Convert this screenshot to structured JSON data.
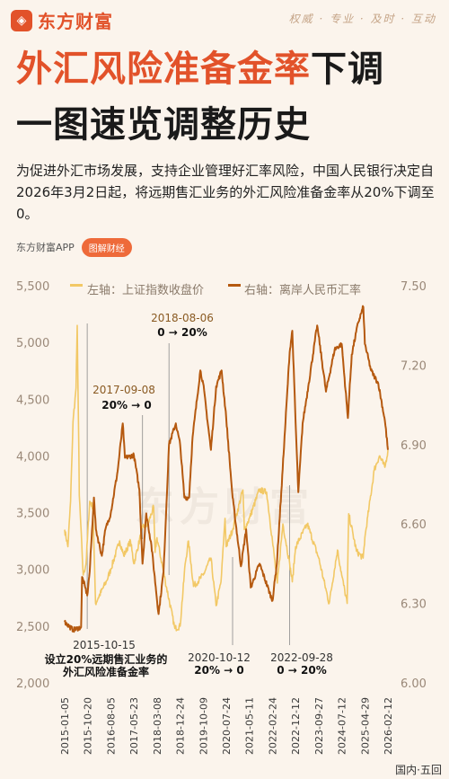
{
  "header": {
    "brand": "东方财富",
    "slogan": "权威 · 专业 · 及时 · 互动"
  },
  "title": {
    "line1_red": "外汇风险准备金率",
    "line1_black": "下调",
    "line2": "一图速览调整历史"
  },
  "intro": "为促进外汇市场发展，支持企业管理好汇率风险，中国人民银行决定自2026年3月2日起，将远期售汇业务的外汇风险准备金率从20%下调至0。",
  "source": {
    "app": "东方财富APP",
    "badge": "图解财经"
  },
  "watermark": "东方财富",
  "footer": "国内·五回",
  "colors": {
    "left_series": "#f2c865",
    "right_series": "#b5590f",
    "axis_text": "#9a8878",
    "title_red": "#e2522a"
  },
  "chart_data": {
    "type": "line",
    "legend": {
      "placement": "top",
      "left": "左轴：上证指数收盘价",
      "right": "右轴：离岸人民币汇率"
    },
    "left_axis": {
      "range": [
        2000,
        5500
      ],
      "ticks": [
        "5,500",
        "5,000",
        "4,500",
        "4,000",
        "3,500",
        "3,000",
        "2,500",
        "2,000"
      ]
    },
    "right_axis": {
      "range": [
        6.0,
        7.5
      ],
      "ticks": [
        "7.50",
        "7.20",
        "6.90",
        "6.60",
        "6.30",
        "6.00"
      ]
    },
    "x_ticks": [
      "2015-01-05",
      "2015-10-20",
      "2016-08-05",
      "2017-05-23",
      "2018-03-08",
      "2018-12-24",
      "2019-10-09",
      "2020-07-24",
      "2021-05-11",
      "2022-02-24",
      "2022-12-12",
      "2023-09-27",
      "2024-07-12",
      "2025-04-29",
      "2026-02-12"
    ],
    "grid": false,
    "series": [
      {
        "name": "左轴：上证指数收盘价",
        "axis": "left",
        "points": [
          [
            "2015-01-05",
            3350
          ],
          [
            "2015-02-15",
            3200
          ],
          [
            "2015-03-20",
            3600
          ],
          [
            "2015-04-20",
            4300
          ],
          [
            "2015-05-28",
            4600
          ],
          [
            "2015-06-12",
            5150
          ],
          [
            "2015-07-08",
            3650
          ],
          [
            "2015-08-26",
            2950
          ],
          [
            "2015-09-30",
            3050
          ],
          [
            "2015-11-15",
            3600
          ],
          [
            "2015-12-25",
            3550
          ],
          [
            "2016-01-28",
            2700
          ],
          [
            "2016-03-01",
            2750
          ],
          [
            "2016-06-15",
            2900
          ],
          [
            "2016-08-05",
            3000
          ],
          [
            "2016-11-25",
            3250
          ],
          [
            "2017-01-15",
            3120
          ],
          [
            "2017-04-10",
            3250
          ],
          [
            "2017-05-23",
            3050
          ],
          [
            "2017-09-08",
            3370
          ],
          [
            "2017-11-15",
            3400
          ],
          [
            "2018-01-26",
            3550
          ],
          [
            "2018-02-12",
            3150
          ],
          [
            "2018-03-08",
            3280
          ],
          [
            "2018-06-20",
            2900
          ],
          [
            "2018-10-18",
            2480
          ],
          [
            "2018-12-24",
            2500
          ],
          [
            "2019-02-25",
            3050
          ],
          [
            "2019-04-08",
            3250
          ],
          [
            "2019-06-10",
            2850
          ],
          [
            "2019-10-09",
            2950
          ],
          [
            "2020-01-14",
            3100
          ],
          [
            "2020-03-19",
            2680
          ],
          [
            "2020-05-20",
            2890
          ],
          [
            "2020-07-09",
            3450
          ],
          [
            "2020-07-24",
            3200
          ],
          [
            "2020-10-12",
            3350
          ],
          [
            "2021-02-18",
            3700
          ],
          [
            "2021-03-09",
            3350
          ],
          [
            "2021-05-11",
            3450
          ],
          [
            "2021-09-13",
            3700
          ],
          [
            "2021-12-13",
            3680
          ],
          [
            "2022-02-24",
            3250
          ],
          [
            "2022-04-26",
            2880
          ],
          [
            "2022-07-05",
            3400
          ],
          [
            "2022-09-28",
            3050
          ],
          [
            "2022-10-31",
            2890
          ],
          [
            "2022-12-12",
            3200
          ],
          [
            "2023-05-08",
            3400
          ],
          [
            "2023-09-27",
            3100
          ],
          [
            "2024-02-05",
            2700
          ],
          [
            "2024-05-20",
            3170
          ],
          [
            "2024-07-12",
            2950
          ],
          [
            "2024-09-18",
            2700
          ],
          [
            "2024-10-08",
            3490
          ],
          [
            "2025-01-13",
            3160
          ],
          [
            "2025-04-07",
            3100
          ],
          [
            "2025-04-29",
            3280
          ],
          [
            "2025-08-25",
            3880
          ],
          [
            "2025-10-28",
            4000
          ],
          [
            "2026-01-05",
            3900
          ],
          [
            "2026-02-12",
            4050
          ]
        ]
      },
      {
        "name": "右轴：离岸人民币汇率",
        "axis": "right",
        "points": [
          [
            "2015-01-05",
            6.23
          ],
          [
            "2015-04-20",
            6.2
          ],
          [
            "2015-07-30",
            6.21
          ],
          [
            "2015-08-12",
            6.4
          ],
          [
            "2015-09-20",
            6.36
          ],
          [
            "2015-10-15",
            6.33
          ],
          [
            "2015-11-15",
            6.42
          ],
          [
            "2016-01-07",
            6.7
          ],
          [
            "2016-02-01",
            6.58
          ],
          [
            "2016-04-15",
            6.48
          ],
          [
            "2016-05-31",
            6.58
          ],
          [
            "2016-08-05",
            6.64
          ],
          [
            "2016-10-31",
            6.8
          ],
          [
            "2017-01-03",
            6.98
          ],
          [
            "2017-01-30",
            6.85
          ],
          [
            "2017-05-23",
            6.86
          ],
          [
            "2017-07-30",
            6.73
          ],
          [
            "2017-09-08",
            6.45
          ],
          [
            "2017-10-25",
            6.64
          ],
          [
            "2017-12-28",
            6.52
          ],
          [
            "2018-03-28",
            6.26
          ],
          [
            "2018-05-30",
            6.42
          ],
          [
            "2018-08-06",
            6.9
          ],
          [
            "2018-10-31",
            6.98
          ],
          [
            "2018-12-24",
            6.9
          ],
          [
            "2019-02-15",
            6.7
          ],
          [
            "2019-04-15",
            6.7
          ],
          [
            "2019-05-30",
            6.93
          ],
          [
            "2019-09-03",
            7.18
          ],
          [
            "2019-10-09",
            7.13
          ],
          [
            "2020-01-14",
            6.88
          ],
          [
            "2020-03-20",
            7.12
          ],
          [
            "2020-05-27",
            7.18
          ],
          [
            "2020-07-24",
            7.0
          ],
          [
            "2020-10-12",
            6.7
          ],
          [
            "2021-01-25",
            6.44
          ],
          [
            "2021-03-31",
            6.58
          ],
          [
            "2021-05-28",
            6.36
          ],
          [
            "2021-09-15",
            6.45
          ],
          [
            "2022-02-24",
            6.31
          ],
          [
            "2022-04-20",
            6.45
          ],
          [
            "2022-06-15",
            6.72
          ],
          [
            "2022-09-28",
            7.25
          ],
          [
            "2022-10-31",
            7.33
          ],
          [
            "2022-12-12",
            6.98
          ],
          [
            "2023-01-15",
            6.72
          ],
          [
            "2023-03-10",
            6.98
          ],
          [
            "2023-05-20",
            7.12
          ],
          [
            "2023-09-08",
            7.35
          ],
          [
            "2023-09-27",
            7.31
          ],
          [
            "2023-12-28",
            7.1
          ],
          [
            "2024-04-15",
            7.26
          ],
          [
            "2024-07-12",
            7.28
          ],
          [
            "2024-09-27",
            7.0
          ],
          [
            "2024-11-15",
            7.24
          ],
          [
            "2025-02-03",
            7.36
          ],
          [
            "2025-04-09",
            7.42
          ],
          [
            "2025-04-29",
            7.28
          ],
          [
            "2025-07-15",
            7.18
          ],
          [
            "2025-10-15",
            7.13
          ],
          [
            "2026-01-05",
            6.99
          ],
          [
            "2026-02-12",
            6.88
          ]
        ]
      }
    ],
    "annotations": [
      {
        "date": "2015-10-15",
        "label": "2015-10-15",
        "lines": [
          "设立20%远期售汇业务的",
          "外汇风险准备金率"
        ]
      },
      {
        "date": "2017-09-08",
        "label": "2017-09-08",
        "lines": [
          "20% → 0"
        ]
      },
      {
        "date": "2018-08-06",
        "label": "2018-08-06",
        "lines": [
          "0 → 20%"
        ]
      },
      {
        "date": "2020-10-12",
        "label": "2020-10-12",
        "lines": [
          "20% → 0"
        ]
      },
      {
        "date": "2022-09-28",
        "label": "2022-09-28",
        "lines": [
          "0 → 20%"
        ]
      }
    ]
  }
}
